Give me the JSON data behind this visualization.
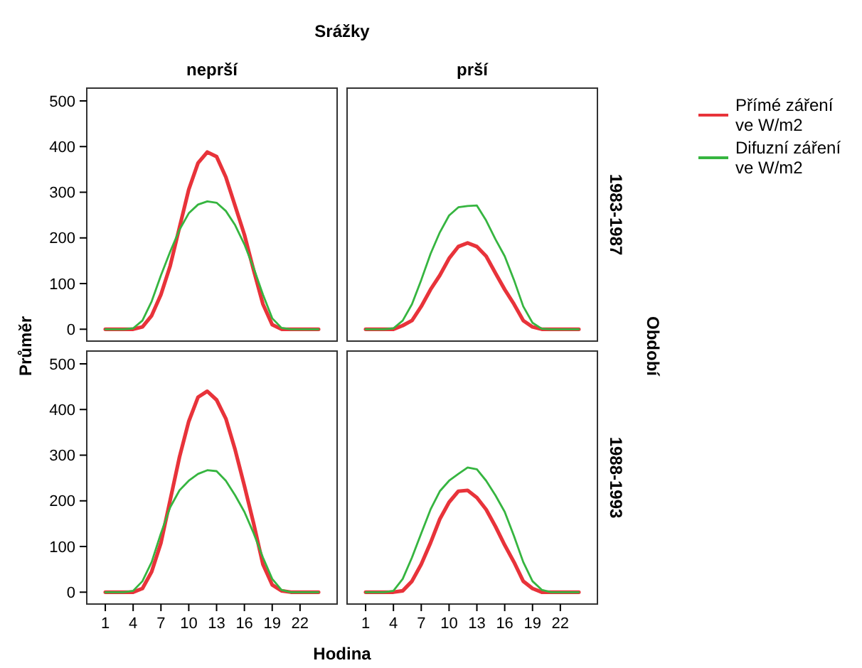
{
  "chart_data": [
    {
      "type": "line",
      "title": "neprší",
      "ylabel": "Průměr",
      "annotations": [
        "Srážky"
      ],
      "x": [
        1,
        2,
        3,
        4,
        5,
        6,
        7,
        8,
        9,
        10,
        11,
        12,
        13,
        14,
        15,
        16,
        17,
        18,
        19,
        20,
        21,
        22,
        23,
        24
      ],
      "xlim": [
        -1,
        26
      ],
      "ylim": [
        -26,
        528
      ],
      "yticks": [
        0,
        100,
        200,
        300,
        400,
        500
      ],
      "tick_labels": "y",
      "legend": "right",
      "series": [
        {
          "name": "Přímé záření ve W/m2",
          "color": "#e8333a",
          "values": [
            0,
            0,
            0,
            0,
            5,
            30,
            76,
            139,
            223,
            306,
            364,
            388,
            378,
            333,
            270,
            207,
            129,
            55,
            10,
            0,
            0,
            0,
            0,
            0
          ]
        },
        {
          "name": "Difuzní záření ve W/m2",
          "color": "#36b540",
          "values": [
            0,
            0,
            0,
            2,
            19,
            61,
            118,
            170,
            218,
            254,
            273,
            280,
            277,
            259,
            228,
            186,
            134,
            76,
            24,
            3,
            0,
            0,
            0,
            0
          ]
        }
      ]
    },
    {
      "type": "line",
      "title": "prší",
      "y2label": "1983-1987",
      "annotations": [
        "Období"
      ],
      "x": [
        1,
        2,
        3,
        4,
        5,
        6,
        7,
        8,
        9,
        10,
        11,
        12,
        13,
        14,
        15,
        16,
        17,
        18,
        19,
        20,
        21,
        22,
        23,
        24
      ],
      "xlim": [
        -1,
        26
      ],
      "ylim": [
        -26,
        528
      ],
      "tick_labels": false,
      "series": [
        {
          "color": "#e8333a",
          "values": [
            0,
            0,
            0,
            0,
            8,
            19,
            50,
            87,
            118,
            155,
            181,
            189,
            181,
            160,
            123,
            87,
            55,
            19,
            5,
            0,
            0,
            0,
            0,
            0
          ]
        },
        {
          "color": "#36b540",
          "values": [
            0,
            0,
            0,
            2,
            19,
            55,
            108,
            165,
            212,
            249,
            267,
            270,
            271,
            238,
            197,
            160,
            108,
            50,
            14,
            1,
            0,
            0,
            0,
            0
          ]
        }
      ]
    },
    {
      "type": "line",
      "xlabel": "Hodina",
      "x": [
        1,
        2,
        3,
        4,
        5,
        6,
        7,
        8,
        9,
        10,
        11,
        12,
        13,
        14,
        15,
        16,
        17,
        18,
        19,
        20,
        21,
        22,
        23,
        24
      ],
      "xlim": [
        -1,
        26
      ],
      "xticks": [
        1,
        4,
        7,
        10,
        13,
        16,
        19,
        22
      ],
      "ylim": [
        -26,
        528
      ],
      "yticks": [
        0,
        100,
        200,
        300,
        400,
        500
      ],
      "series": [
        {
          "color": "#e8333a",
          "values": [
            0,
            0,
            0,
            0,
            8,
            45,
            108,
            202,
            296,
            374,
            427,
            440,
            421,
            380,
            312,
            233,
            150,
            61,
            16,
            3,
            0,
            0,
            0,
            0
          ]
        },
        {
          "color": "#36b540",
          "values": [
            0,
            0,
            0,
            3,
            24,
            66,
            129,
            186,
            223,
            244,
            259,
            267,
            265,
            244,
            212,
            176,
            129,
            76,
            29,
            5,
            0,
            0,
            0,
            0
          ]
        }
      ]
    },
    {
      "type": "line",
      "y2label": "1988-1993",
      "x": [
        1,
        2,
        3,
        4,
        5,
        6,
        7,
        8,
        9,
        10,
        11,
        12,
        13,
        14,
        15,
        16,
        17,
        18,
        19,
        20,
        21,
        22,
        23,
        24
      ],
      "xlim": [
        -1,
        26
      ],
      "xticks": [
        1,
        4,
        7,
        10,
        13,
        16,
        19,
        22
      ],
      "ylim": [
        -26,
        528
      ],
      "tick_labels": "x",
      "series": [
        {
          "color": "#e8333a",
          "values": [
            0,
            0,
            0,
            0,
            3,
            24,
            61,
            108,
            160,
            197,
            221,
            223,
            207,
            181,
            144,
            103,
            66,
            24,
            8,
            0,
            0,
            0,
            0,
            0
          ]
        },
        {
          "color": "#36b540",
          "values": [
            0,
            0,
            0,
            3,
            29,
            76,
            129,
            181,
            221,
            244,
            259,
            273,
            269,
            244,
            212,
            176,
            123,
            66,
            24,
            5,
            0,
            0,
            0,
            0
          ]
        }
      ]
    }
  ]
}
